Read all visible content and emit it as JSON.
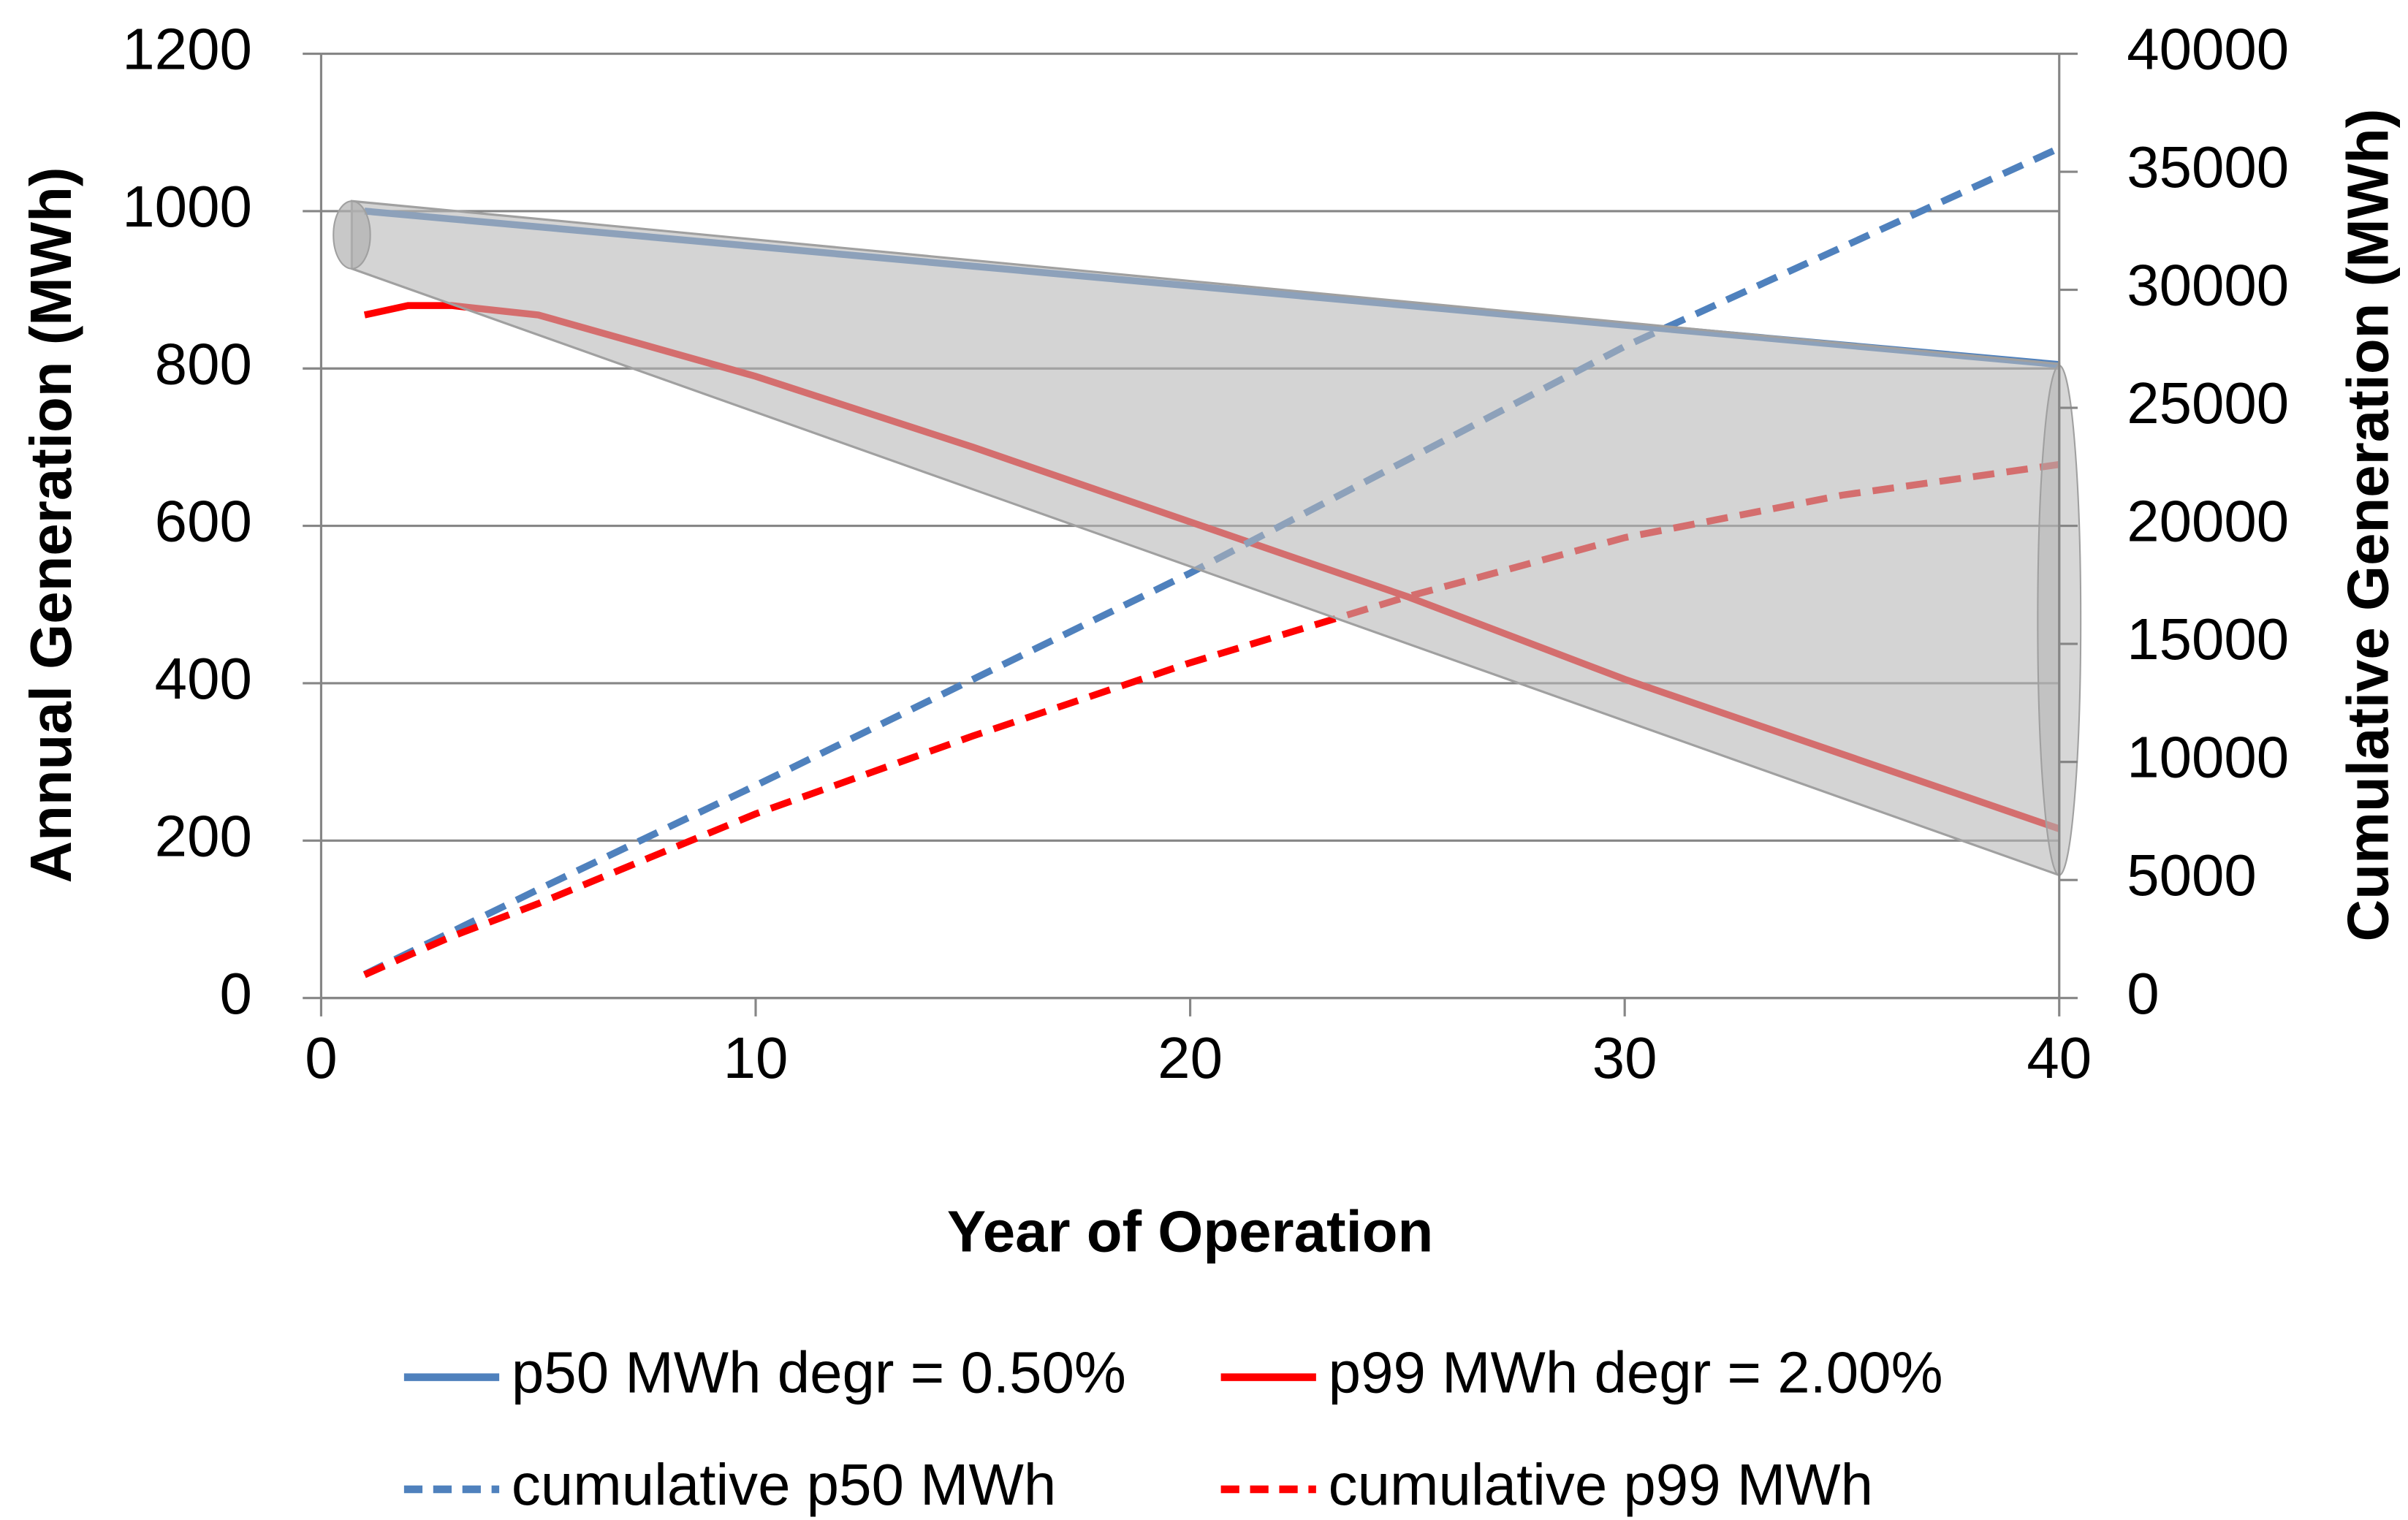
{
  "chart_data": {
    "type": "line",
    "x_label": "Year of Operation",
    "y_label": "Annual Generation (MWh)",
    "y2_label": "Cumulative Generation (MWh)",
    "x": [
      1,
      2,
      3,
      5,
      10,
      15,
      20,
      25,
      30,
      35,
      40
    ],
    "xlim": [
      0,
      40
    ],
    "xticks": [
      0,
      10,
      20,
      30,
      40
    ],
    "ylim": [
      0,
      1200
    ],
    "yticks": [
      0,
      200,
      400,
      600,
      800,
      1000,
      1200
    ],
    "y2lim": [
      0,
      40000
    ],
    "y2ticks": [
      0,
      5000,
      10000,
      15000,
      20000,
      25000,
      30000,
      35000,
      40000
    ],
    "grid": true,
    "legend": "bottom",
    "series": [
      {
        "name": "p50 MWh degr = 0.50%",
        "color": "#4f81bd",
        "dashed": false,
        "values": [
          1000,
          995,
          990,
          980,
          955,
          930,
          905,
          880,
          855,
          830,
          805
        ]
      },
      {
        "name": "p99 MWh degr = 2.00%",
        "color": "#ff0000",
        "dashed": false,
        "values": [
          868,
          880,
          880,
          868,
          790,
          700,
          605,
          510,
          405,
          310,
          215
        ]
      },
      {
        "name": "cumulative p50 MWh",
        "color": "#4f81bd",
        "dashed": true,
        "axis": "y2",
        "values": [
          1000,
          1900,
          2800,
          4600,
          9000,
          13500,
          18000,
          22800,
          27600,
          31800,
          36000
        ]
      },
      {
        "name": "cumulative p99 MWh",
        "color": "#ff0000",
        "dashed": true,
        "axis": "y2",
        "values": [
          980,
          1800,
          2600,
          4000,
          7800,
          11100,
          14200,
          17000,
          19500,
          21300,
          22600
        ]
      }
    ]
  }
}
